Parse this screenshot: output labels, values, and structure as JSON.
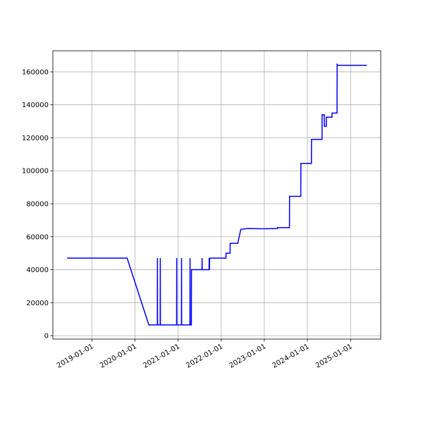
{
  "chart_data": {
    "type": "line",
    "x": [
      "2018-06-05",
      "2019-10-27",
      "2020-04-28",
      "2020-07-09",
      "2020-07-10",
      "2020-07-11",
      "2020-08-02",
      "2020-08-03",
      "2020-08-04",
      "2020-12-19",
      "2020-12-20",
      "2020-12-21",
      "2021-01-29",
      "2021-01-30",
      "2021-01-31",
      "2021-04-11",
      "2021-04-12",
      "2021-04-13",
      "2021-04-23",
      "2021-04-24",
      "2021-07-22",
      "2021-07-23",
      "2021-07-24",
      "2021-09-20",
      "2021-09-21",
      "2021-09-23",
      "2021-09-25",
      "2022-02-10",
      "2022-02-11",
      "2022-03-17",
      "2022-03-18",
      "2022-05-21",
      "2022-06-16",
      "2022-08-15",
      "2022-12-01",
      "2023-04-22",
      "2023-04-23",
      "2023-08-02",
      "2023-08-03",
      "2023-11-06",
      "2023-11-07",
      "2024-02-04",
      "2024-02-05",
      "2024-05-04",
      "2024-05-05",
      "2024-05-23",
      "2024-05-24",
      "2024-06-09",
      "2024-06-10",
      "2024-07-27",
      "2024-07-28",
      "2024-09-08",
      "2024-09-09",
      "2024-09-10",
      "2025-05-18"
    ],
    "values": [
      47000,
      47000,
      6500,
      6500,
      47000,
      6500,
      6500,
      47000,
      6500,
      6500,
      47000,
      6500,
      6500,
      47000,
      6500,
      6500,
      47000,
      6500,
      6500,
      40000,
      40000,
      47000,
      40000,
      40000,
      47000,
      40000,
      47000,
      47000,
      50000,
      50000,
      56000,
      56000,
      64500,
      65000,
      64800,
      65000,
      65500,
      65500,
      84500,
      84500,
      104500,
      104500,
      119000,
      119000,
      134000,
      134000,
      127000,
      127000,
      132500,
      132500,
      135000,
      135000,
      165000,
      164000,
      164000
    ],
    "color": "#0000ff",
    "xlim": [
      "2018-02-05",
      "2025-09-13"
    ],
    "xticks": [
      "2019-01-01",
      "2020-01-01",
      "2021-01-01",
      "2022-01-01",
      "2023-01-01",
      "2024-01-01",
      "2025-01-01"
    ],
    "ylim": [
      -2100,
      172800
    ],
    "yticks": [
      0,
      20000,
      40000,
      60000,
      80000,
      100000,
      120000,
      140000,
      160000
    ],
    "grid": true
  }
}
